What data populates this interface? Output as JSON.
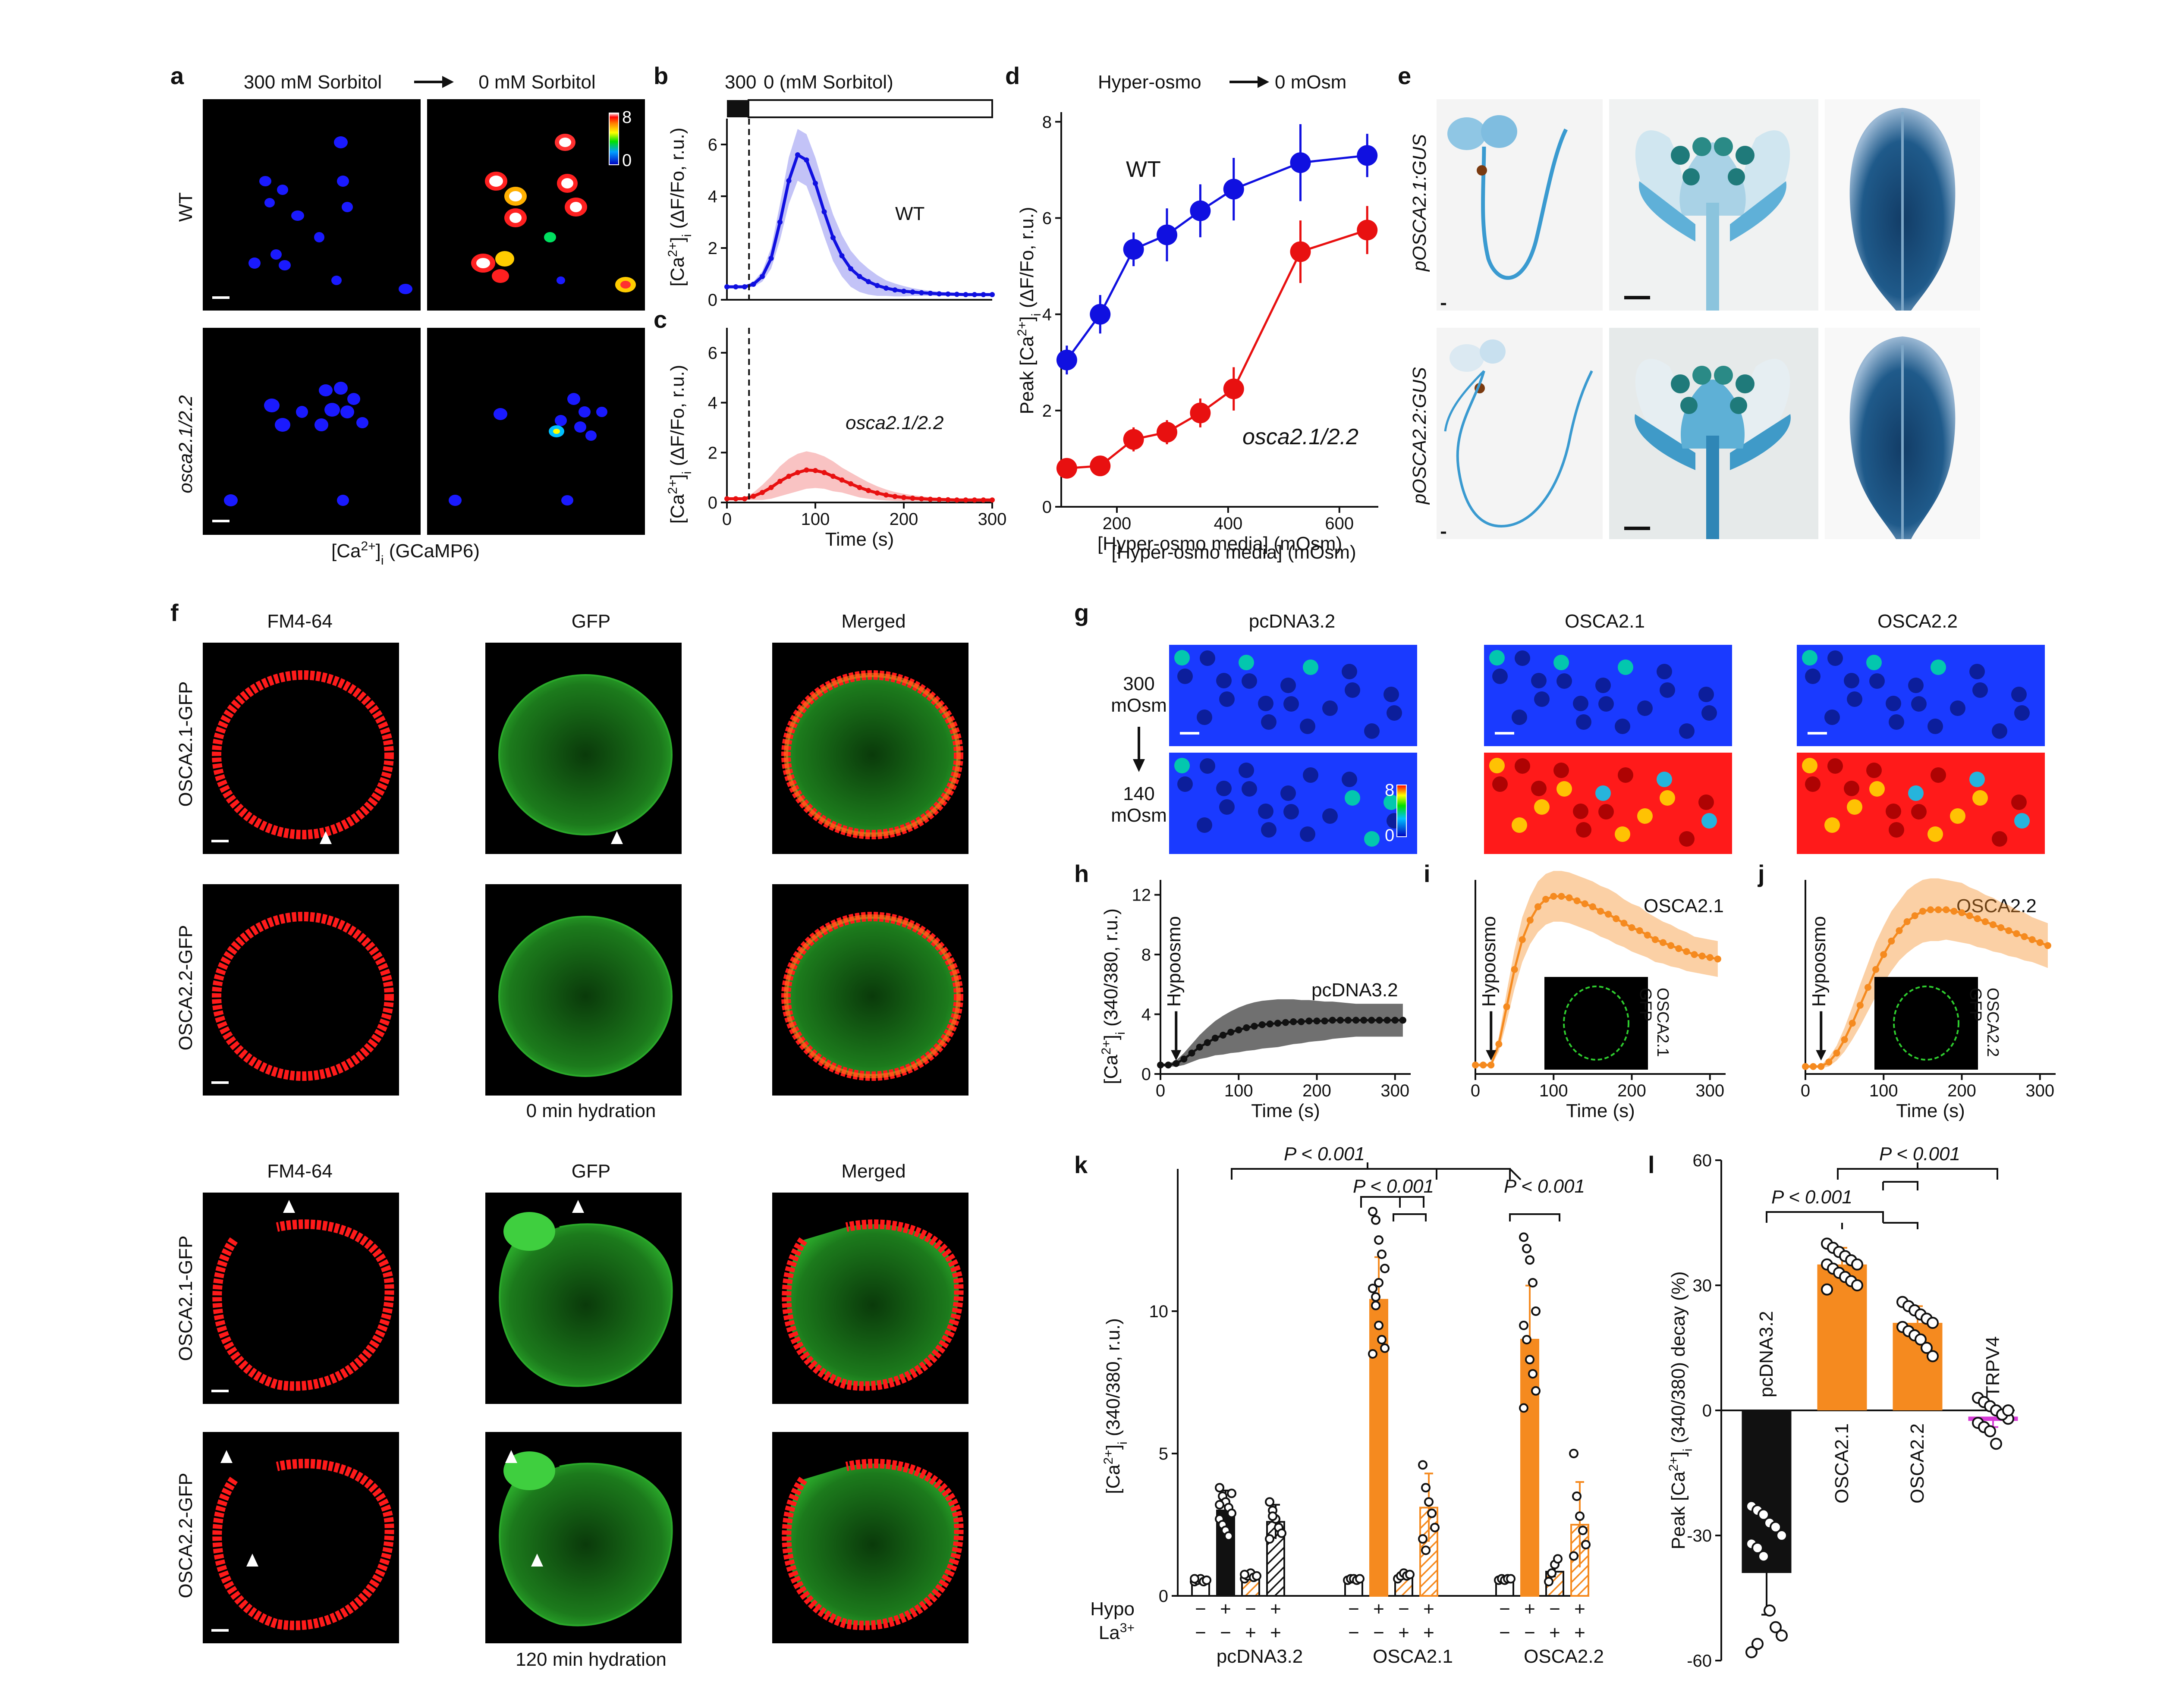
{
  "panels": {
    "a": {
      "letter": "a",
      "cond_left": "300 mM Sorbitol",
      "cond_right": "0 mM Sorbitol",
      "row1": "WT",
      "row2": "osca2.1/2.2",
      "caption": "[Ca2+]i (GCaMP6)",
      "colorbar_max": "8",
      "colorbar_min": "0"
    },
    "b": {
      "letter": "b",
      "bar_left": "300",
      "bar_right": "0 (mM Sorbitol)",
      "series_label": "WT",
      "ylabel": "[Ca2+]i (ΔF/Fo, r.u.)"
    },
    "c": {
      "letter": "c",
      "series_label": "osca2.1/2.2",
      "ylabel": "[Ca2+]i (ΔF/Fo, r.u.)",
      "xlabel": "Time (s)"
    },
    "d": {
      "letter": "d",
      "top": "Hyper-osmo",
      "top_right": "0 mOsm",
      "wt_label": "WT",
      "mut_label": "osca2.1/2.2",
      "ylabel": "Peak [Ca2+]i (ΔF/Fo, r.u.)",
      "xlabel": "[Hyper-osmo media] (mOsm)"
    },
    "e": {
      "letter": "e",
      "row1": "pOSCA2.1:GUS",
      "row2": "pOSCA2.2:GUS"
    },
    "f": {
      "letter": "f",
      "cols": [
        "FM4-64",
        "GFP",
        "Merged"
      ],
      "rows": [
        "OSCA2.1-GFP",
        "OSCA2.2-GFP",
        "OSCA2.1-GFP",
        "OSCA2.2-GFP"
      ],
      "caption_top": "0 min hydration",
      "caption_bottom": "120 min hydration"
    },
    "g": {
      "letter": "g",
      "cols": [
        "pcDNA3.2",
        "OSCA2.1",
        "OSCA2.2"
      ],
      "row1": "300",
      "row1b": "mOsm",
      "row2": "140",
      "row2b": "mOsm",
      "colorbar_max": "8",
      "colorbar_min": "0"
    },
    "h": {
      "letter": "h",
      "label": "pcDNA3.2",
      "arrow": "Hypoosmo",
      "ylabel": "[Ca2+]i (340/380, r.u.)",
      "xlabel": "Time (s)"
    },
    "i": {
      "letter": "i",
      "label": "OSCA2.1",
      "arrow": "Hypoosmo",
      "inset": "OSCA2.1",
      "inset2": "GFP",
      "xlabel": "Time (s)"
    },
    "j": {
      "letter": "j",
      "label": "OSCA2.2",
      "arrow": "Hypoosmo",
      "inset": "OSCA2.2",
      "inset2": "GFP",
      "xlabel": "Time (s)"
    },
    "k": {
      "letter": "k",
      "ylabel": "[Ca2+]i (340/380, r.u.)",
      "row_hypo": "Hypo",
      "row_la": "La3+",
      "groups": [
        "pcDNA3.2",
        "OSCA2.1",
        "OSCA2.2"
      ],
      "p1": "P < 0.001",
      "p2": "P < 0.001",
      "p3": "P < 0.001"
    },
    "l": {
      "letter": "l",
      "ylabel": "Peak [Ca2+]i (340/380) decay (%)",
      "p1": "P < 0.001",
      "p2": "P < 0.001"
    }
  },
  "chart_data": [
    {
      "panel": "b",
      "type": "line",
      "x": [
        0,
        10,
        20,
        30,
        40,
        50,
        60,
        70,
        80,
        90,
        100,
        110,
        120,
        130,
        140,
        150,
        160,
        170,
        180,
        190,
        200,
        210,
        220,
        230,
        240,
        250,
        260,
        270,
        280,
        290,
        300
      ],
      "series": [
        {
          "name": "WT",
          "values": [
            0.5,
            0.5,
            0.5,
            0.6,
            0.9,
            1.6,
            3.0,
            4.6,
            5.6,
            5.4,
            4.5,
            3.4,
            2.4,
            1.7,
            1.2,
            0.9,
            0.7,
            0.55,
            0.45,
            0.38,
            0.33,
            0.3,
            0.27,
            0.25,
            0.23,
            0.22,
            0.21,
            0.2,
            0.2,
            0.2,
            0.2
          ],
          "err": [
            0.05,
            0.05,
            0.05,
            0.1,
            0.2,
            0.4,
            0.7,
            0.9,
            1.0,
            1.0,
            1.0,
            0.95,
            0.9,
            0.8,
            0.7,
            0.6,
            0.5,
            0.4,
            0.3,
            0.25,
            0.2,
            0.15,
            0.12,
            0.1,
            0.08,
            0.07,
            0.06,
            0.05,
            0.05,
            0.05,
            0.05
          ],
          "color": "#1010e0"
        }
      ],
      "xlim": [
        0,
        300
      ],
      "ylim": [
        0,
        7
      ],
      "yticks": [
        0,
        2,
        4,
        6
      ],
      "xticks": [],
      "marker_x": 25
    },
    {
      "panel": "c",
      "type": "line",
      "x": [
        0,
        10,
        20,
        30,
        40,
        50,
        60,
        70,
        80,
        90,
        100,
        110,
        120,
        130,
        140,
        150,
        160,
        170,
        180,
        190,
        200,
        210,
        220,
        230,
        240,
        250,
        260,
        270,
        280,
        290,
        300
      ],
      "series": [
        {
          "name": "osca2.1/2.2",
          "values": [
            0.15,
            0.15,
            0.15,
            0.25,
            0.4,
            0.6,
            0.85,
            1.05,
            1.2,
            1.3,
            1.28,
            1.2,
            1.05,
            0.9,
            0.75,
            0.6,
            0.48,
            0.38,
            0.3,
            0.24,
            0.2,
            0.17,
            0.15,
            0.13,
            0.12,
            0.11,
            0.1,
            0.1,
            0.1,
            0.1,
            0.1
          ],
          "err": [
            0.05,
            0.05,
            0.05,
            0.15,
            0.3,
            0.45,
            0.6,
            0.7,
            0.75,
            0.75,
            0.7,
            0.65,
            0.6,
            0.5,
            0.45,
            0.4,
            0.33,
            0.27,
            0.22,
            0.18,
            0.15,
            0.12,
            0.1,
            0.08,
            0.07,
            0.06,
            0.05,
            0.05,
            0.05,
            0.05,
            0.05
          ],
          "color": "#e81010"
        }
      ],
      "xlim": [
        0,
        300
      ],
      "ylim": [
        0,
        7
      ],
      "yticks": [
        0,
        2,
        4,
        6
      ],
      "xticks": [
        0,
        100,
        200,
        300
      ],
      "xlabel": "Time (s)",
      "marker_x": 25
    },
    {
      "panel": "d",
      "type": "line",
      "series": [
        {
          "name": "WT",
          "color": "#1010e0",
          "x": [
            110,
            170,
            230,
            290,
            350,
            410,
            530,
            650
          ],
          "values": [
            3.05,
            4.0,
            5.35,
            5.65,
            6.15,
            6.6,
            7.15,
            7.3
          ],
          "err": [
            0.3,
            0.4,
            0.35,
            0.55,
            0.55,
            0.65,
            0.8,
            0.45
          ]
        },
        {
          "name": "osca2.1/2.2",
          "color": "#e81010",
          "x": [
            110,
            170,
            230,
            290,
            350,
            410,
            530,
            650
          ],
          "values": [
            0.8,
            0.85,
            1.4,
            1.55,
            1.95,
            2.45,
            5.3,
            5.75
          ],
          "err": [
            0.15,
            0.15,
            0.25,
            0.25,
            0.3,
            0.45,
            0.65,
            0.5
          ]
        }
      ],
      "xlim": [
        100,
        670
      ],
      "ylim": [
        0,
        8.2
      ],
      "xticks": [
        200,
        400,
        600
      ],
      "yticks": [
        0,
        2,
        4,
        6,
        8
      ],
      "xlabel": "[Hyper-osmo media] (mOsm)"
    },
    {
      "panel": "h",
      "type": "line",
      "x": [
        0,
        10,
        20,
        30,
        40,
        50,
        60,
        70,
        80,
        90,
        100,
        110,
        120,
        130,
        140,
        150,
        160,
        170,
        180,
        190,
        200,
        210,
        220,
        230,
        240,
        250,
        260,
        270,
        280,
        290,
        300,
        310
      ],
      "series": [
        {
          "name": "pcDNA3.2",
          "color": "#111111",
          "values": [
            0.6,
            0.6,
            0.7,
            1.0,
            1.4,
            1.8,
            2.1,
            2.4,
            2.6,
            2.8,
            2.95,
            3.1,
            3.2,
            3.3,
            3.35,
            3.4,
            3.45,
            3.5,
            3.5,
            3.55,
            3.55,
            3.55,
            3.6,
            3.6,
            3.6,
            3.6,
            3.6,
            3.6,
            3.6,
            3.6,
            3.6,
            3.6
          ],
          "err": [
            0.1,
            0.1,
            0.2,
            0.4,
            0.6,
            0.8,
            1.0,
            1.15,
            1.3,
            1.4,
            1.5,
            1.55,
            1.6,
            1.6,
            1.6,
            1.6,
            1.55,
            1.5,
            1.45,
            1.4,
            1.35,
            1.3,
            1.25,
            1.2,
            1.15,
            1.1,
            1.1,
            1.1,
            1.1,
            1.1,
            1.1,
            1.1
          ]
        }
      ],
      "xlim": [
        0,
        320
      ],
      "ylim": [
        0,
        13
      ],
      "xticks": [
        0,
        100,
        200,
        300
      ],
      "yticks": [
        0,
        4,
        8,
        12
      ],
      "xlabel": "Time (s)"
    },
    {
      "panel": "i",
      "type": "line",
      "x": [
        0,
        10,
        20,
        30,
        40,
        50,
        60,
        70,
        80,
        90,
        100,
        110,
        120,
        130,
        140,
        150,
        160,
        170,
        180,
        190,
        200,
        210,
        220,
        230,
        240,
        250,
        260,
        270,
        280,
        290,
        300,
        310
      ],
      "series": [
        {
          "name": "OSCA2.1",
          "color": "#f58a1f",
          "values": [
            0.6,
            0.6,
            0.6,
            2.0,
            4.5,
            7.0,
            9.0,
            10.3,
            11.2,
            11.7,
            11.9,
            11.9,
            11.8,
            11.6,
            11.4,
            11.2,
            10.9,
            10.7,
            10.4,
            10.1,
            9.8,
            9.6,
            9.3,
            9.0,
            8.8,
            8.6,
            8.4,
            8.2,
            8.0,
            7.9,
            7.8,
            7.7
          ],
          "err": [
            0.1,
            0.1,
            0.1,
            0.5,
            1.0,
            1.3,
            1.5,
            1.6,
            1.7,
            1.7,
            1.7,
            1.7,
            1.7,
            1.7,
            1.7,
            1.7,
            1.7,
            1.7,
            1.7,
            1.6,
            1.6,
            1.6,
            1.5,
            1.5,
            1.4,
            1.4,
            1.3,
            1.3,
            1.2,
            1.2,
            1.2,
            1.2
          ]
        }
      ],
      "xlim": [
        0,
        320
      ],
      "ylim": [
        0,
        13
      ],
      "xticks": [
        0,
        100,
        200,
        300
      ],
      "yticks": [],
      "xlabel": "Time (s)"
    },
    {
      "panel": "j",
      "type": "line",
      "x": [
        0,
        10,
        20,
        30,
        40,
        50,
        60,
        70,
        80,
        90,
        100,
        110,
        120,
        130,
        140,
        150,
        160,
        170,
        180,
        190,
        200,
        210,
        220,
        230,
        240,
        250,
        260,
        270,
        280,
        290,
        300,
        310
      ],
      "series": [
        {
          "name": "OSCA2.2",
          "color": "#f58a1f",
          "values": [
            0.5,
            0.5,
            0.5,
            0.8,
            1.4,
            2.3,
            3.4,
            4.6,
            5.8,
            7.0,
            8.0,
            8.9,
            9.6,
            10.2,
            10.6,
            10.9,
            11.0,
            11.0,
            11.0,
            10.9,
            10.8,
            10.6,
            10.4,
            10.2,
            10.0,
            9.8,
            9.6,
            9.4,
            9.2,
            9.0,
            8.8,
            8.6
          ],
          "err": [
            0.1,
            0.1,
            0.1,
            0.3,
            0.5,
            0.8,
            1.1,
            1.4,
            1.6,
            1.8,
            1.9,
            2.0,
            2.0,
            2.1,
            2.1,
            2.1,
            2.1,
            2.1,
            2.0,
            2.0,
            2.0,
            1.9,
            1.9,
            1.8,
            1.8,
            1.7,
            1.7,
            1.6,
            1.6,
            1.5,
            1.5,
            1.5
          ]
        }
      ],
      "xlim": [
        0,
        320
      ],
      "ylim": [
        0,
        13
      ],
      "xticks": [
        0,
        100,
        200,
        300
      ],
      "yticks": [],
      "xlabel": "Time (s)"
    },
    {
      "panel": "k",
      "type": "bar",
      "categories": [
        "pcDNA3.2 -/-",
        "pcDNA3.2 +/-",
        "pcDNA3.2 -/+",
        "pcDNA3.2 +/+",
        "OSCA2.1 -/-",
        "OSCA2.1 +/-",
        "OSCA2.1 -/+",
        "OSCA2.1 +/+",
        "OSCA2.2 -/-",
        "OSCA2.2 +/-",
        "OSCA2.2 -/+",
        "OSCA2.2 +/+"
      ],
      "values": [
        0.55,
        3.0,
        0.7,
        2.6,
        0.6,
        10.4,
        0.7,
        3.1,
        0.6,
        9.0,
        0.85,
        2.5
      ],
      "err": [
        0.05,
        0.7,
        0.1,
        0.6,
        0.05,
        1.5,
        0.1,
        1.2,
        0.05,
        1.9,
        0.2,
        1.5
      ],
      "hypo": [
        "−",
        "+",
        "−",
        "+",
        "−",
        "+",
        "−",
        "+",
        "−",
        "+",
        "−",
        "+"
      ],
      "la": [
        "−",
        "−",
        "+",
        "+",
        "−",
        "−",
        "+",
        "+",
        "−",
        "−",
        "+",
        "+"
      ],
      "colors": [
        "#ffffff",
        "#111111",
        "#ffffff",
        "#111111",
        "#ffffff",
        "#f58a1f",
        "#ffffff",
        "#f58a1f",
        "#ffffff",
        "#f58a1f",
        "#ffffff",
        "#f58a1f"
      ],
      "hatched": [
        false,
        false,
        true,
        true,
        false,
        false,
        true,
        true,
        false,
        false,
        true,
        true
      ],
      "points": [
        [
          0.5,
          0.55,
          0.6,
          0.5,
          0.55,
          0.6
        ],
        [
          3.8,
          3.5,
          3.3,
          3.1,
          2.9,
          2.7,
          2.5,
          2.3,
          2.1,
          3.6,
          3.2
        ],
        [
          0.6,
          0.7,
          0.8,
          0.65,
          0.7,
          0.75
        ],
        [
          3.3,
          3.0,
          2.7,
          2.4,
          2.2,
          2.0,
          2.8
        ],
        [
          0.55,
          0.6,
          0.6,
          0.55,
          0.6
        ],
        [
          13.5,
          13.2,
          12.5,
          12.0,
          11.5,
          10.8,
          10.2,
          9.5,
          9.0,
          8.7,
          8.5,
          10.5,
          11.0
        ],
        [
          0.6,
          0.7,
          0.8,
          0.7,
          0.75
        ],
        [
          4.6,
          3.8,
          3.3,
          2.9,
          2.4,
          2.0,
          1.6
        ],
        [
          0.55,
          0.6,
          0.55,
          0.6,
          0.6
        ],
        [
          12.6,
          12.2,
          11.8,
          11.0,
          10.0,
          9.5,
          9.0,
          8.3,
          7.8,
          7.2,
          6.6
        ],
        [
          0.5,
          0.8,
          1.1,
          1.3
        ],
        [
          5.0,
          3.5,
          2.8,
          2.3,
          1.8,
          1.4
        ]
      ],
      "ylim": [
        0,
        15
      ],
      "yticks": [
        0,
        5,
        10
      ]
    },
    {
      "panel": "l",
      "type": "bar",
      "categories": [
        "pcDNA3.2",
        "OSCA2.1",
        "OSCA2.2",
        "TRPV4"
      ],
      "values": [
        -39,
        35,
        21,
        -2
      ],
      "err": [
        10,
        4,
        4,
        2
      ],
      "colors": [
        "#111111",
        "#f58a1f",
        "#f58a1f",
        "#d63ad6"
      ],
      "points": [
        [
          -23,
          -24,
          -25,
          -27,
          -28,
          -30,
          -32,
          -33,
          -35,
          -48,
          -52,
          -54,
          -58,
          -56
        ],
        [
          40,
          39,
          38,
          37,
          36,
          35,
          35,
          34,
          33,
          32,
          31,
          30,
          29
        ],
        [
          26,
          25,
          24,
          23,
          22,
          21,
          20,
          19,
          18,
          17,
          15,
          13
        ],
        [
          3,
          2,
          1,
          0,
          -1,
          -2,
          -3,
          -4,
          -5,
          -8,
          -1,
          0
        ]
      ],
      "ylim": [
        -60,
        60
      ],
      "yticks": [
        -60,
        -30,
        0,
        30,
        60
      ]
    }
  ]
}
